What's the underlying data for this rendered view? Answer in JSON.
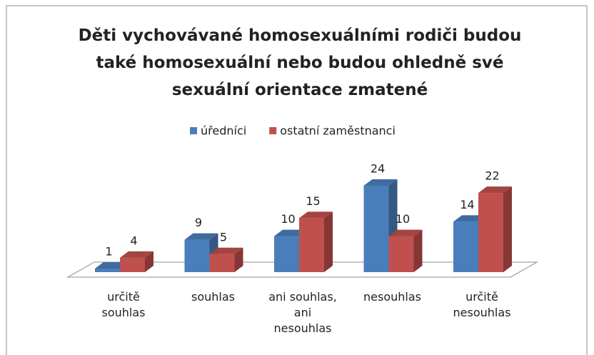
{
  "chart_data": {
    "type": "bar3d",
    "title": "Děti vychovávané homosexuálními rodiči budou také homosexuální nebo budou ohledně své sexuální orientace zmatené",
    "categories": [
      "určitě\nsouhlas",
      "souhlas",
      "ani souhlas,\nani\nnesouhlas",
      "nesouhlas",
      "určitě\nnesouhlas"
    ],
    "series": [
      {
        "name": "úředníci",
        "color": "#4a7ebb",
        "values": [
          1,
          9,
          10,
          24,
          14
        ]
      },
      {
        "name": "ostatní zaměstnanci",
        "color": "#c0504d",
        "values": [
          4,
          5,
          15,
          10,
          22
        ]
      }
    ],
    "legend": "top"
  }
}
